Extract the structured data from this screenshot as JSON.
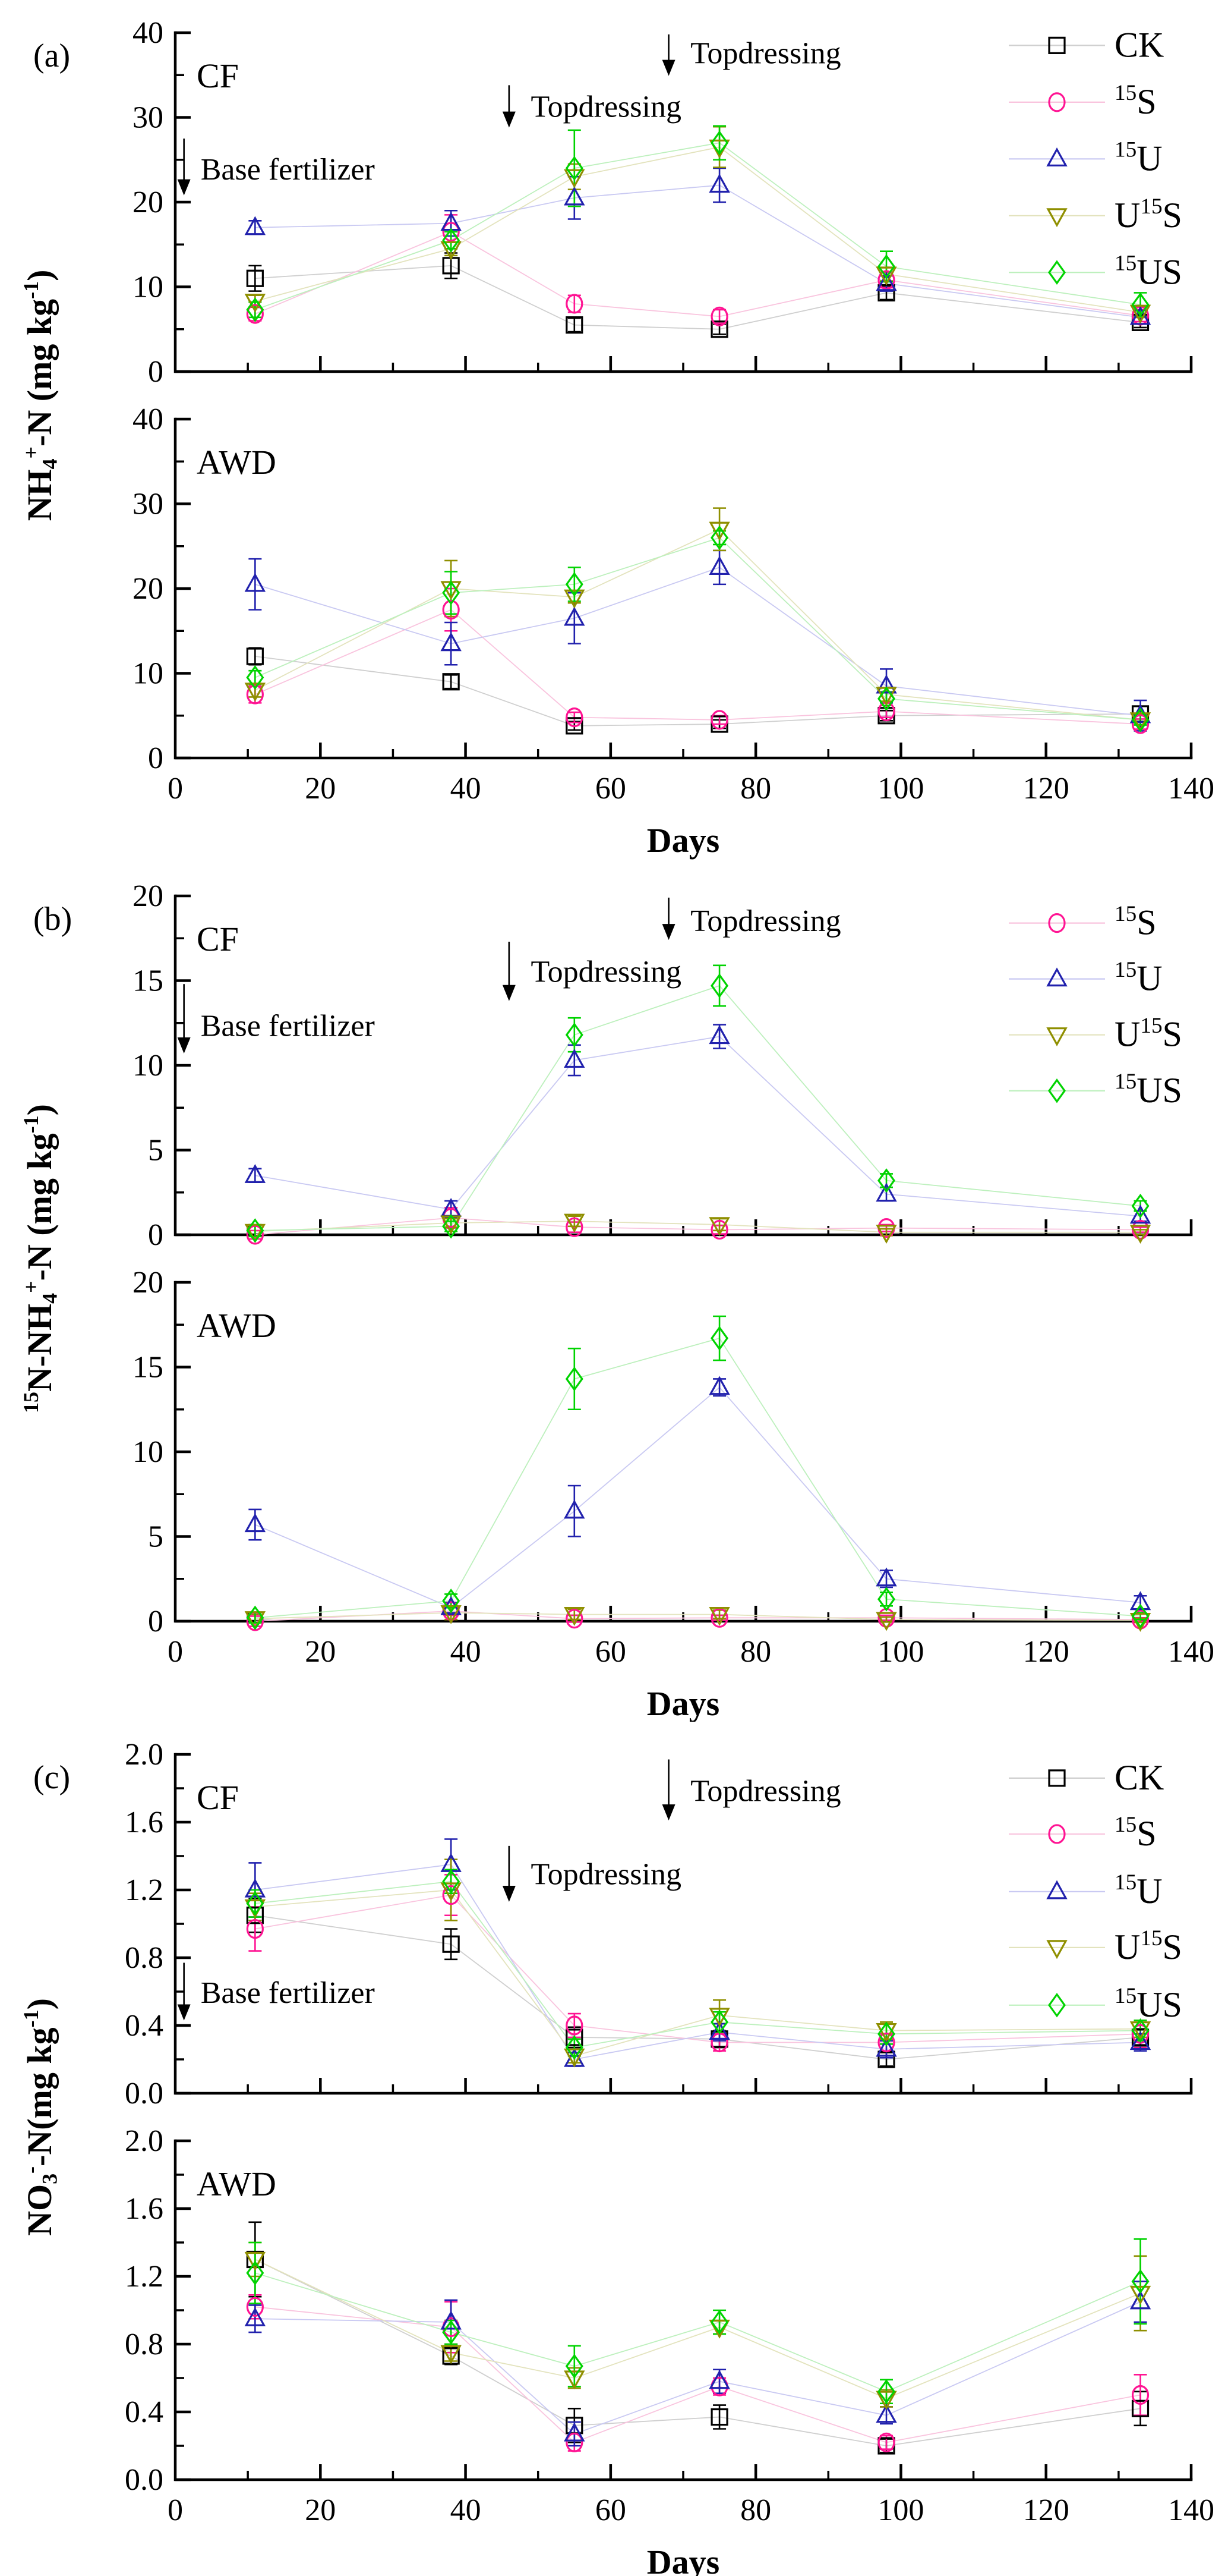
{
  "figure": {
    "title": "Soil mineral nitrogen dynamics figure",
    "x_points": [
      11,
      38,
      55,
      75,
      98,
      133
    ],
    "series_styles": {
      "CK": {
        "label": "CK",
        "marker": "square",
        "color": "#000000",
        "line_color": "#cfcfcf"
      },
      "15S": {
        "label": "^{15}S",
        "marker": "circle",
        "color": "#FF1493",
        "line_color": "#f9c4de"
      },
      "15U": {
        "label": "^{15}U",
        "marker": "triangle-up",
        "color": "#2121AD",
        "line_color": "#c9c9f2"
      },
      "U15S": {
        "label": "U^{15}S",
        "marker": "triangle-down",
        "color": "#8F8F00",
        "line_color": "#e3e3bd"
      },
      "15US": {
        "label": "^{15}US",
        "marker": "diamond",
        "color": "#00D300",
        "line_color": "#bdf0bd"
      }
    }
  },
  "chart_data": [
    {
      "id": "a",
      "type": "line",
      "letter": "(a)",
      "ylabel": "NH_{4}^{+}-N (mg kg^{-1})",
      "xlabel": "Days",
      "x_axis": {
        "min": 0,
        "max": 140,
        "major": 20,
        "minor": 10
      },
      "y_axis": {
        "min": 0,
        "max": 40,
        "major": 10,
        "minor": 5,
        "decimals": 0
      },
      "legend": {
        "keys": [
          "CK",
          "15S",
          "15U",
          "U15S",
          "15US"
        ],
        "y_values": [
          38.5,
          31.8,
          25.1,
          18.4,
          11.7
        ]
      },
      "x": [
        11,
        38,
        55,
        75,
        98,
        133
      ],
      "subplots": [
        {
          "title": "CF",
          "series": [
            {
              "key": "CK",
              "values": [
                11,
                12.5,
                5.5,
                5,
                9.3,
                5.8
              ],
              "errors": [
                1.5,
                1.5,
                0.8,
                0.6,
                0.8,
                0.6
              ]
            },
            {
              "key": "15S",
              "values": [
                6.8,
                16.5,
                8,
                6.5,
                10.8,
                6.6
              ],
              "errors": [
                0.8,
                2,
                1,
                0.8,
                0.9,
                0.7
              ]
            },
            {
              "key": "15U",
              "values": [
                17,
                17.5,
                20.5,
                22,
                10.4,
                6.4
              ],
              "errors": [
                0.8,
                1.5,
                2.5,
                2,
                0.9,
                0.8
              ]
            },
            {
              "key": "U15S",
              "values": [
                8.3,
                14.5,
                23,
                26.5,
                11.5,
                7
              ],
              "errors": [
                0.7,
                0.8,
                1.5,
                2.4,
                0.8,
                0.6
              ]
            },
            {
              "key": "15US",
              "values": [
                7.3,
                15.5,
                24,
                27,
                12.4,
                7.9
              ],
              "errors": [
                0.9,
                1,
                4.5,
                2,
                1.8,
                1.4
              ]
            }
          ],
          "annotations": [
            {
              "kind": "arrow",
              "x": 1.2,
              "y_from": 27.5,
              "y_to": 20.8
            },
            {
              "kind": "text",
              "x": 3.5,
              "y": 23.8,
              "text": "Base fertilizer"
            },
            {
              "kind": "arrow",
              "x": 46,
              "y_from": 33.8,
              "y_to": 28.8
            },
            {
              "kind": "text",
              "x": 49,
              "y": 31.2,
              "text": "Topdressing"
            },
            {
              "kind": "arrow",
              "x": 68,
              "y_from": 39.8,
              "y_to": 34.9
            },
            {
              "kind": "text",
              "x": 71,
              "y": 37.5,
              "text": "Topdressing"
            }
          ]
        },
        {
          "title": "AWD",
          "series": [
            {
              "key": "CK",
              "values": [
                12,
                9,
                3.8,
                4,
                5,
                5.2
              ],
              "errors": [
                1,
                0.8,
                0.5,
                0.5,
                0.6,
                0.9
              ]
            },
            {
              "key": "15S",
              "values": [
                7.5,
                17.5,
                4.8,
                4.5,
                5.5,
                4
              ],
              "errors": [
                1,
                2.5,
                0.6,
                0.5,
                0.7,
                0.6
              ]
            },
            {
              "key": "15U",
              "values": [
                20.5,
                13.5,
                16.5,
                22.5,
                8.5,
                5
              ],
              "errors": [
                3,
                2.5,
                3,
                2,
                2,
                1.8
              ]
            },
            {
              "key": "U15S",
              "values": [
                8,
                20,
                19,
                27,
                7.5,
                4.5
              ],
              "errors": [
                0.8,
                3.3,
                0.7,
                2.5,
                0.8,
                0.6
              ]
            },
            {
              "key": "15US",
              "values": [
                9.5,
                19.5,
                20.5,
                26,
                7,
                4.5
              ],
              "errors": [
                0.8,
                2.5,
                2,
                0.8,
                0.8,
                0.6
              ]
            }
          ],
          "annotations": []
        }
      ]
    },
    {
      "id": "b",
      "type": "line",
      "letter": "(b)",
      "ylabel": "^{15}N-NH_{4}^{+}-N (mg kg^{-1})",
      "xlabel": "Days",
      "x_axis": {
        "min": 0,
        "max": 140,
        "major": 20,
        "minor": 10
      },
      "y_axis": {
        "min": 0,
        "max": 20,
        "major": 5,
        "minor": 2.5,
        "decimals": 0
      },
      "legend": {
        "keys": [
          "15S",
          "15U",
          "U15S",
          "15US"
        ],
        "y_values": [
          18.4,
          15.1,
          11.8,
          8.5
        ]
      },
      "x": [
        11,
        38,
        55,
        75,
        98,
        133
      ],
      "subplots": [
        {
          "title": "CF",
          "series": [
            {
              "key": "15S",
              "values": [
                0,
                1,
                0.45,
                0.3,
                0.4,
                0.3
              ],
              "errors": [
                0.25,
                0.6,
                0.3,
                0.25,
                0.2,
                0.15
              ]
            },
            {
              "key": "15U",
              "values": [
                3.5,
                1.5,
                10.3,
                11.7,
                2.4,
                1.1
              ],
              "errors": [
                0.4,
                0.5,
                0.9,
                0.7,
                0.4,
                0.3
              ]
            },
            {
              "key": "U15S",
              "values": [
                0.2,
                0.7,
                0.8,
                0.6,
                0.15,
                0.15
              ],
              "errors": [
                0.3,
                0.25,
                0.3,
                0.35,
                0.2,
                0.15
              ]
            },
            {
              "key": "15US",
              "values": [
                0.25,
                0.5,
                11.8,
                14.7,
                3.2,
                1.7
              ],
              "errors": [
                0.35,
                0.3,
                1,
                1.2,
                0.4,
                0.3
              ]
            }
          ],
          "annotations": [
            {
              "kind": "arrow",
              "x": 1.2,
              "y_from": 14.8,
              "y_to": 10.7
            },
            {
              "kind": "text",
              "x": 3.5,
              "y": 12.3,
              "text": "Base fertilizer"
            },
            {
              "kind": "arrow",
              "x": 46,
              "y_from": 17.3,
              "y_to": 13.8
            },
            {
              "kind": "text",
              "x": 49,
              "y": 15.5,
              "text": "Topdressing"
            },
            {
              "kind": "arrow",
              "x": 68,
              "y_from": 19.9,
              "y_to": 17.4
            },
            {
              "kind": "text",
              "x": 71,
              "y": 18.5,
              "text": "Topdressing"
            }
          ]
        },
        {
          "title": "AWD",
          "series": [
            {
              "key": "15S",
              "values": [
                0,
                0.6,
                0.15,
                0.2,
                0.2,
                0.1
              ],
              "errors": [
                0.3,
                0.25,
                0.2,
                0.15,
                0.15,
                0.1
              ]
            },
            {
              "key": "15U",
              "values": [
                5.7,
                0.8,
                6.5,
                13.8,
                2.5,
                1.1
              ],
              "errors": [
                0.9,
                0.3,
                1.5,
                0.5,
                0.5,
                0.4
              ]
            },
            {
              "key": "U15S",
              "values": [
                0.15,
                0.5,
                0.4,
                0.4,
                0.1,
                0.05
              ],
              "errors": [
                0.25,
                0.4,
                0.3,
                0.25,
                0.15,
                0.12
              ]
            },
            {
              "key": "15US",
              "values": [
                0.2,
                1.2,
                14.3,
                16.7,
                1.3,
                0.3
              ],
              "errors": [
                0.3,
                0.4,
                1.8,
                1.3,
                0.4,
                0.2
              ]
            }
          ],
          "annotations": []
        }
      ]
    },
    {
      "id": "c",
      "type": "line",
      "letter": "(c)",
      "ylabel": "NO_{3}^{-}-N(mg kg^{-1})",
      "xlabel": "Days",
      "x_axis": {
        "min": 0,
        "max": 140,
        "major": 20,
        "minor": 10
      },
      "y_axis": {
        "min": 0,
        "max": 2,
        "major": 0.4,
        "minor": 0.2,
        "decimals": 1
      },
      "legend": {
        "keys": [
          "CK",
          "15S",
          "15U",
          "U15S",
          "15US"
        ],
        "y_values": [
          1.86,
          1.53,
          1.19,
          0.86,
          0.52
        ]
      },
      "x": [
        11,
        38,
        55,
        75,
        98,
        133
      ],
      "subplots": [
        {
          "title": "CF",
          "series": [
            {
              "key": "CK",
              "values": [
                1.05,
                0.88,
                0.33,
                0.32,
                0.2,
                0.33
              ],
              "errors": [
                0.1,
                0.09,
                0.06,
                0.05,
                0.04,
                0.05
              ]
            },
            {
              "key": "15S",
              "values": [
                0.97,
                1.17,
                0.4,
                0.3,
                0.3,
                0.35
              ],
              "errors": [
                0.13,
                0.12,
                0.07,
                0.05,
                0.05,
                0.08
              ]
            },
            {
              "key": "15U",
              "values": [
                1.2,
                1.35,
                0.2,
                0.36,
                0.26,
                0.3
              ],
              "errors": [
                0.16,
                0.15,
                0.04,
                0.05,
                0.05,
                0.05
              ]
            },
            {
              "key": "U15S",
              "values": [
                1.1,
                1.2,
                0.22,
                0.46,
                0.37,
                0.38
              ],
              "errors": [
                0.08,
                0.18,
                0.04,
                0.09,
                0.05,
                0.05
              ]
            },
            {
              "key": "15US",
              "values": [
                1.12,
                1.25,
                0.27,
                0.42,
                0.35,
                0.37
              ],
              "errors": [
                0.08,
                0.07,
                0.05,
                0.06,
                0.06,
                0.06
              ]
            }
          ],
          "annotations": [
            {
              "kind": "arrow",
              "x": 1.2,
              "y_from": 0.77,
              "y_to": 0.43
            },
            {
              "kind": "text",
              "x": 3.5,
              "y": 0.59,
              "text": "Base fertilizer"
            },
            {
              "kind": "arrow",
              "x": 46,
              "y_from": 1.46,
              "y_to": 1.13
            },
            {
              "kind": "text",
              "x": 49,
              "y": 1.29,
              "text": "Topdressing"
            },
            {
              "kind": "arrow",
              "x": 68,
              "y_from": 1.97,
              "y_to": 1.61
            },
            {
              "kind": "text",
              "x": 71,
              "y": 1.78,
              "text": "Topdressing"
            }
          ]
        },
        {
          "title": "AWD",
          "series": [
            {
              "key": "CK",
              "values": [
                1.3,
                0.73,
                0.32,
                0.37,
                0.2,
                0.42
              ],
              "errors": [
                0.22,
                0.05,
                0.1,
                0.07,
                0.04,
                0.1
              ]
            },
            {
              "key": "15S",
              "values": [
                1.02,
                0.9,
                0.22,
                0.55,
                0.22,
                0.5
              ],
              "errors": [
                0.07,
                0.15,
                0.05,
                0.05,
                0.04,
                0.12
              ]
            },
            {
              "key": "15U",
              "values": [
                0.95,
                0.93,
                0.27,
                0.58,
                0.38,
                1.05
              ],
              "errors": [
                0.08,
                0.13,
                0.07,
                0.07,
                0.05,
                0.12
              ]
            },
            {
              "key": "U15S",
              "values": [
                1.3,
                0.75,
                0.6,
                0.9,
                0.48,
                1.1
              ],
              "errors": [
                0.1,
                0.05,
                0.06,
                0.04,
                0.05,
                0.22
              ]
            },
            {
              "key": "15US",
              "values": [
                1.22,
                0.87,
                0.67,
                0.93,
                0.52,
                1.17
              ],
              "errors": [
                0.18,
                0.07,
                0.12,
                0.07,
                0.07,
                0.25
              ]
            }
          ],
          "annotations": []
        }
      ]
    }
  ]
}
